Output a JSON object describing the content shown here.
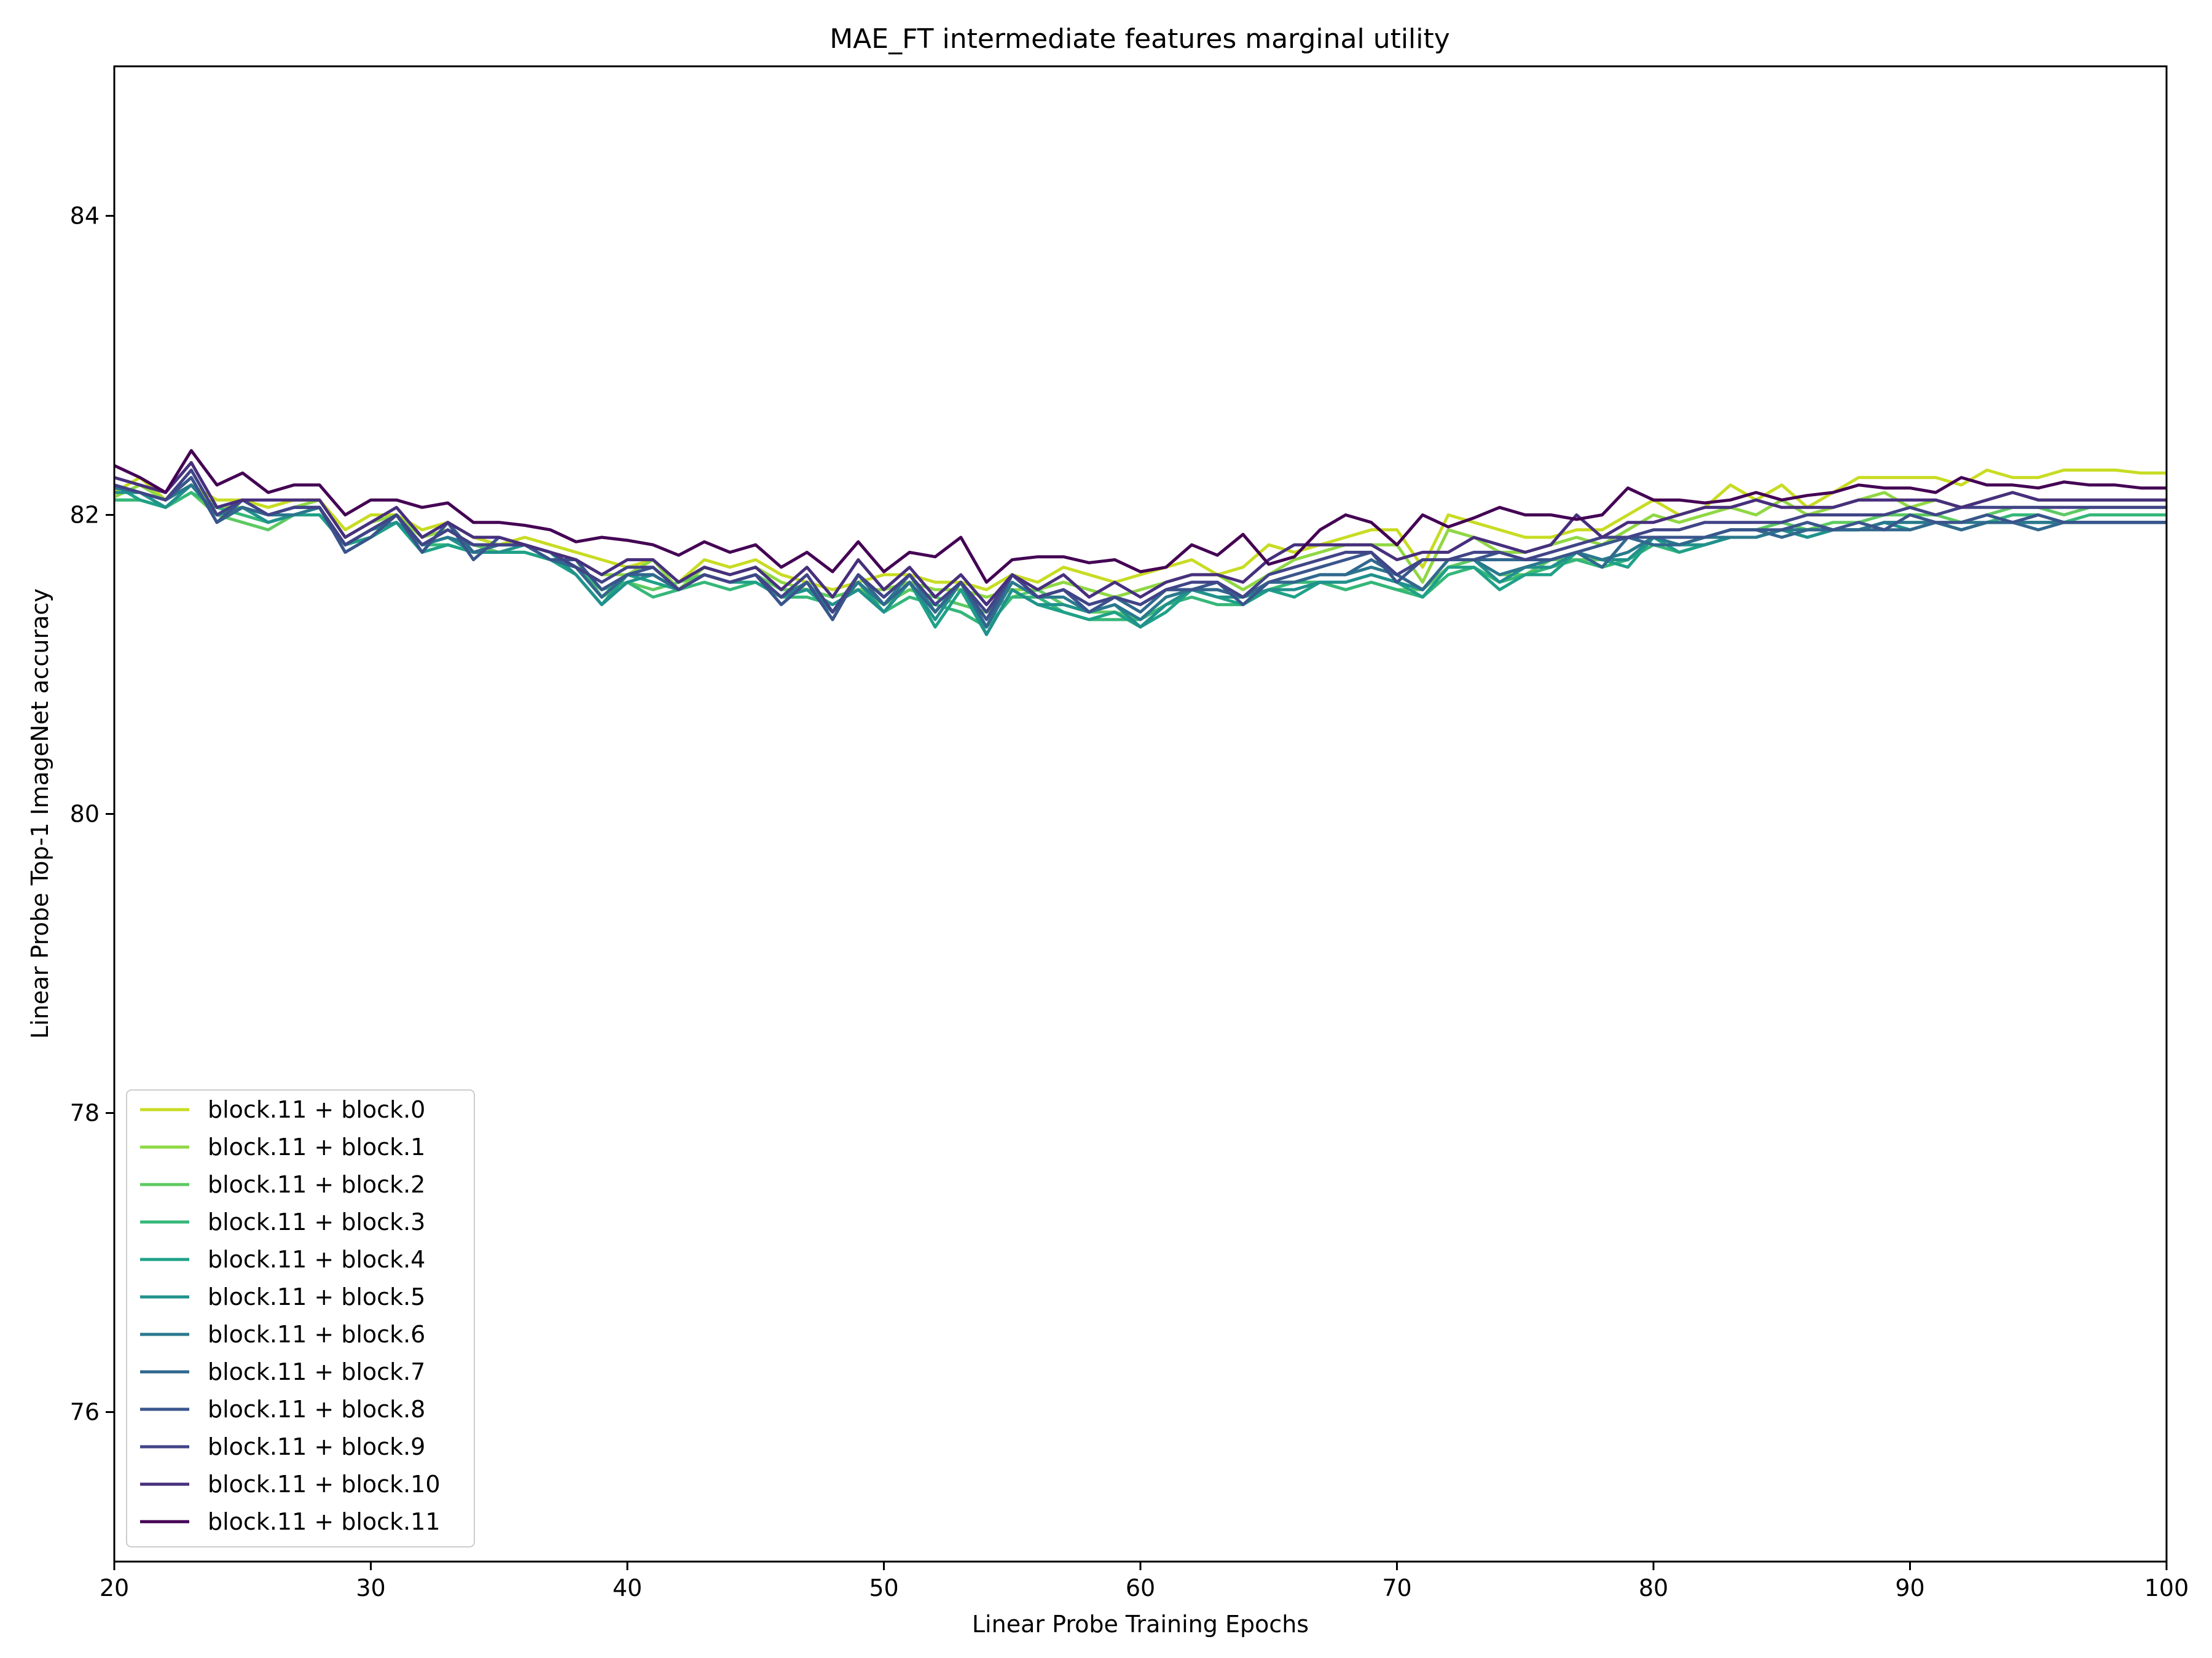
{
  "chart_data": {
    "type": "line",
    "title": "MAE_FT intermediate features marginal utility",
    "xlabel": "Linear Probe Training Epochs",
    "ylabel": "Linear Probe Top-1 ImageNet accuracy",
    "xlim": [
      20,
      100
    ],
    "ylim": [
      75,
      85
    ],
    "x_ticks": [
      20,
      30,
      40,
      50,
      60,
      70,
      80,
      90,
      100
    ],
    "x_tick_labels": [
      "20",
      "30",
      "40",
      "50",
      "60",
      "70",
      "80",
      "90",
      "100"
    ],
    "y_ticks": [
      76,
      78,
      80,
      82,
      84
    ],
    "y_tick_labels": [
      "76",
      "78",
      "80",
      "82",
      "84"
    ],
    "grid": false,
    "legend_position": "bottom-left",
    "x_start": 20,
    "x_step": 1,
    "series": [
      {
        "name": "block.11 + block.0",
        "color": "#c8dc23",
        "values": [
          82.15,
          82.25,
          82.1,
          82.2,
          82.1,
          82.1,
          82.05,
          82.1,
          82.1,
          81.9,
          82.0,
          82.0,
          81.9,
          81.95,
          81.85,
          81.8,
          81.85,
          81.8,
          81.75,
          81.7,
          81.65,
          81.7,
          81.55,
          81.7,
          81.65,
          81.7,
          81.6,
          81.55,
          81.5,
          81.55,
          81.6,
          81.6,
          81.55,
          81.55,
          81.5,
          81.6,
          81.55,
          81.65,
          81.6,
          81.55,
          81.6,
          81.65,
          81.7,
          81.6,
          81.65,
          81.8,
          81.75,
          81.8,
          81.85,
          81.9,
          81.9,
          81.65,
          82.0,
          81.95,
          81.9,
          81.85,
          81.85,
          81.9,
          81.9,
          82.0,
          82.1,
          82.0,
          82.05,
          82.2,
          82.1,
          82.2,
          82.05,
          82.15,
          82.25,
          82.25,
          82.25,
          82.25,
          82.2,
          82.3,
          82.25,
          82.25,
          82.3,
          82.3,
          82.3,
          82.28,
          82.28
        ]
      },
      {
        "name": "block.11 + block.1",
        "color": "#8fd744",
        "values": [
          82.12,
          82.2,
          82.1,
          82.2,
          82.05,
          82.05,
          82.0,
          82.05,
          82.1,
          81.85,
          81.95,
          82.0,
          81.85,
          81.9,
          81.8,
          81.8,
          81.8,
          81.75,
          81.7,
          81.6,
          81.6,
          81.7,
          81.5,
          81.65,
          81.6,
          81.65,
          81.55,
          81.5,
          81.45,
          81.5,
          81.5,
          81.55,
          81.5,
          81.5,
          81.45,
          81.5,
          81.5,
          81.55,
          81.5,
          81.45,
          81.5,
          81.55,
          81.6,
          81.6,
          81.5,
          81.6,
          81.7,
          81.75,
          81.8,
          81.8,
          81.8,
          81.55,
          81.9,
          81.85,
          81.75,
          81.75,
          81.8,
          81.85,
          81.8,
          81.9,
          82.0,
          81.95,
          82.0,
          82.05,
          82.0,
          82.1,
          82.0,
          82.05,
          82.1,
          82.15,
          82.05,
          82.1,
          82.05,
          82.1,
          82.15,
          82.1,
          82.1,
          82.1,
          82.1,
          82.1,
          82.1
        ]
      },
      {
        "name": "block.11 + block.2",
        "color": "#5ec962",
        "values": [
          82.1,
          82.1,
          82.05,
          82.15,
          82.0,
          81.95,
          81.9,
          82.0,
          82.05,
          81.8,
          81.9,
          81.95,
          81.8,
          81.85,
          81.8,
          81.75,
          81.75,
          81.7,
          81.7,
          81.45,
          81.55,
          81.5,
          81.55,
          81.6,
          81.55,
          81.6,
          81.5,
          81.5,
          81.45,
          81.5,
          81.4,
          81.5,
          81.45,
          81.4,
          81.35,
          81.45,
          81.5,
          81.4,
          81.35,
          81.35,
          81.3,
          81.45,
          81.5,
          81.45,
          81.45,
          81.5,
          81.55,
          81.55,
          81.5,
          81.55,
          81.5,
          81.5,
          81.65,
          81.7,
          81.6,
          81.6,
          81.7,
          81.7,
          81.7,
          81.75,
          81.85,
          81.8,
          81.85,
          81.9,
          81.9,
          81.95,
          81.9,
          81.95,
          81.95,
          82.0,
          82.0,
          82.0,
          81.95,
          82.0,
          82.05,
          82.05,
          82.0,
          82.05,
          82.05,
          82.05,
          82.05
        ]
      },
      {
        "name": "block.11 + block.3",
        "color": "#35b779",
        "values": [
          82.1,
          82.1,
          82.05,
          82.15,
          82.05,
          82.0,
          81.95,
          82.0,
          82.0,
          81.8,
          81.85,
          81.95,
          81.8,
          81.8,
          81.75,
          81.75,
          81.75,
          81.7,
          81.65,
          81.5,
          81.55,
          81.45,
          81.5,
          81.55,
          81.5,
          81.55,
          81.45,
          81.45,
          81.4,
          81.5,
          81.35,
          81.45,
          81.4,
          81.35,
          81.25,
          81.45,
          81.45,
          81.35,
          81.3,
          81.3,
          81.3,
          81.4,
          81.45,
          81.4,
          81.4,
          81.5,
          81.55,
          81.55,
          81.5,
          81.55,
          81.5,
          81.45,
          81.6,
          81.65,
          81.55,
          81.6,
          81.65,
          81.7,
          81.65,
          81.7,
          81.8,
          81.75,
          81.8,
          81.85,
          81.85,
          81.9,
          81.85,
          81.9,
          81.9,
          81.95,
          81.95,
          81.95,
          81.9,
          81.95,
          82.0,
          82.0,
          81.95,
          82.0,
          82.0,
          82.0,
          82.0
        ]
      },
      {
        "name": "block.11 + block.4",
        "color": "#1fa187",
        "values": [
          82.2,
          82.1,
          82.05,
          82.2,
          82.0,
          82.05,
          81.95,
          82.0,
          82.0,
          81.8,
          81.85,
          81.95,
          81.75,
          81.8,
          81.75,
          81.75,
          81.75,
          81.7,
          81.6,
          81.4,
          81.6,
          81.55,
          81.5,
          81.6,
          81.55,
          81.55,
          81.45,
          81.5,
          81.35,
          81.55,
          81.35,
          81.55,
          81.25,
          81.5,
          81.2,
          81.5,
          81.4,
          81.35,
          81.3,
          81.35,
          81.25,
          81.35,
          81.5,
          81.45,
          81.4,
          81.5,
          81.45,
          81.55,
          81.55,
          81.6,
          81.55,
          81.45,
          81.65,
          81.65,
          81.5,
          81.6,
          81.6,
          81.75,
          81.7,
          81.65,
          81.85,
          81.75,
          81.8,
          81.85,
          81.85,
          81.9,
          81.85,
          81.9,
          81.9,
          81.95,
          81.9,
          81.95,
          81.9,
          81.95,
          81.95,
          81.95,
          81.95,
          81.95,
          81.95,
          81.95,
          81.95
        ]
      },
      {
        "name": "block.11 + block.5",
        "color": "#21918c",
        "values": [
          82.15,
          82.15,
          82.05,
          82.2,
          82.0,
          82.05,
          81.95,
          82.0,
          82.05,
          81.8,
          81.9,
          81.95,
          81.8,
          81.85,
          81.75,
          81.75,
          81.8,
          81.75,
          81.6,
          81.4,
          81.55,
          81.6,
          81.5,
          81.6,
          81.55,
          81.6,
          81.45,
          81.5,
          81.4,
          81.5,
          81.35,
          81.55,
          81.3,
          81.55,
          81.2,
          81.5,
          81.4,
          81.4,
          81.35,
          81.4,
          81.25,
          81.4,
          81.5,
          81.45,
          81.45,
          81.5,
          81.5,
          81.55,
          81.55,
          81.6,
          81.55,
          81.5,
          81.7,
          81.7,
          81.55,
          81.65,
          81.65,
          81.75,
          81.7,
          81.7,
          81.85,
          81.8,
          81.8,
          81.85,
          81.85,
          81.9,
          81.85,
          81.9,
          81.9,
          81.95,
          81.9,
          81.95,
          81.9,
          81.95,
          81.95,
          81.95,
          81.95,
          81.95,
          81.95,
          81.95,
          81.95
        ]
      },
      {
        "name": "block.11 + block.6",
        "color": "#2a788e",
        "values": [
          82.18,
          82.15,
          82.1,
          82.2,
          82.0,
          82.05,
          82.0,
          82.0,
          82.05,
          81.8,
          81.9,
          82.0,
          81.8,
          81.85,
          81.8,
          81.8,
          81.8,
          81.75,
          81.65,
          81.45,
          81.6,
          81.6,
          81.5,
          81.6,
          81.55,
          81.6,
          81.45,
          81.55,
          81.35,
          81.55,
          81.4,
          81.6,
          81.35,
          81.55,
          81.25,
          81.55,
          81.45,
          81.45,
          81.35,
          81.4,
          81.3,
          81.45,
          81.5,
          81.5,
          81.45,
          81.55,
          81.55,
          81.6,
          81.6,
          81.65,
          81.6,
          81.5,
          81.7,
          81.7,
          81.6,
          81.65,
          81.7,
          81.75,
          81.7,
          81.75,
          81.85,
          81.8,
          81.85,
          81.85,
          81.85,
          81.9,
          81.9,
          81.9,
          81.9,
          81.95,
          81.95,
          81.95,
          81.95,
          81.95,
          81.95,
          81.95,
          81.95,
          81.95,
          81.95,
          81.95,
          81.95
        ]
      },
      {
        "name": "block.11 + block.7",
        "color": "#31688e",
        "values": [
          82.2,
          82.15,
          82.1,
          82.25,
          81.95,
          82.05,
          82.0,
          82.05,
          82.05,
          81.75,
          81.85,
          82.0,
          81.75,
          81.95,
          81.75,
          81.8,
          81.8,
          81.7,
          81.65,
          81.45,
          81.6,
          81.6,
          81.5,
          81.6,
          81.55,
          81.6,
          81.4,
          81.55,
          81.3,
          81.6,
          81.4,
          81.55,
          81.35,
          81.55,
          81.25,
          81.6,
          81.45,
          81.5,
          81.4,
          81.45,
          81.35,
          81.5,
          81.5,
          81.5,
          81.45,
          81.55,
          81.55,
          81.6,
          81.6,
          81.7,
          81.6,
          81.5,
          81.7,
          81.7,
          81.7,
          81.7,
          81.7,
          81.75,
          81.65,
          81.85,
          81.8,
          81.8,
          81.85,
          81.9,
          81.9,
          81.85,
          81.9,
          81.9,
          81.9,
          81.9,
          81.9,
          81.95,
          81.9,
          81.95,
          81.95,
          81.9,
          81.95,
          81.95,
          81.95,
          81.95,
          81.95
        ]
      },
      {
        "name": "block.11 + block.8",
        "color": "#39558c",
        "values": [
          82.2,
          82.15,
          82.1,
          82.25,
          81.95,
          82.1,
          82.0,
          82.05,
          82.05,
          81.75,
          81.85,
          82.0,
          81.75,
          81.95,
          81.7,
          81.85,
          81.8,
          81.7,
          81.7,
          81.5,
          81.6,
          81.65,
          81.5,
          81.6,
          81.55,
          81.6,
          81.4,
          81.55,
          81.3,
          81.6,
          81.45,
          81.6,
          81.4,
          81.55,
          81.3,
          81.6,
          81.45,
          81.5,
          81.35,
          81.45,
          81.4,
          81.5,
          81.5,
          81.55,
          81.4,
          81.55,
          81.6,
          81.65,
          81.7,
          81.75,
          81.55,
          81.7,
          81.7,
          81.7,
          81.75,
          81.7,
          81.7,
          81.75,
          81.8,
          81.85,
          81.85,
          81.85,
          81.85,
          81.9,
          81.9,
          81.9,
          81.95,
          81.9,
          81.95,
          81.9,
          82.0,
          81.95,
          81.95,
          82.0,
          81.95,
          82.0,
          81.95,
          81.95,
          81.95,
          81.95,
          81.95
        ]
      },
      {
        "name": "block.11 + block.9",
        "color": "#414487",
        "values": [
          82.2,
          82.15,
          82.1,
          82.3,
          82.0,
          82.1,
          82.0,
          82.05,
          82.05,
          81.8,
          81.9,
          82.0,
          81.8,
          81.9,
          81.8,
          81.8,
          81.8,
          81.75,
          81.65,
          81.55,
          81.65,
          81.65,
          81.5,
          81.6,
          81.55,
          81.6,
          81.45,
          81.6,
          81.35,
          81.6,
          81.45,
          81.6,
          81.4,
          81.55,
          81.35,
          81.6,
          81.45,
          81.5,
          81.4,
          81.45,
          81.4,
          81.5,
          81.55,
          81.55,
          81.45,
          81.6,
          81.65,
          81.7,
          81.75,
          81.75,
          81.6,
          81.7,
          81.7,
          81.75,
          81.75,
          81.7,
          81.75,
          81.8,
          81.85,
          81.85,
          81.9,
          81.9,
          81.95,
          81.95,
          81.95,
          81.95,
          82.0,
          82.0,
          82.0,
          82.0,
          82.05,
          82.0,
          82.05,
          82.05,
          82.05,
          82.05,
          82.05,
          82.05,
          82.05,
          82.05,
          82.05
        ]
      },
      {
        "name": "block.11 + block.10",
        "color": "#472f7d",
        "values": [
          82.25,
          82.2,
          82.15,
          82.35,
          82.05,
          82.1,
          82.1,
          82.1,
          82.1,
          81.85,
          81.95,
          82.05,
          81.85,
          81.95,
          81.85,
          81.85,
          81.8,
          81.75,
          81.7,
          81.6,
          81.7,
          81.7,
          81.55,
          81.65,
          81.6,
          81.65,
          81.5,
          81.65,
          81.45,
          81.7,
          81.5,
          81.65,
          81.45,
          81.6,
          81.4,
          81.6,
          81.5,
          81.6,
          81.45,
          81.55,
          81.45,
          81.55,
          81.6,
          81.6,
          81.55,
          81.7,
          81.8,
          81.8,
          81.8,
          81.8,
          81.7,
          81.75,
          81.75,
          81.85,
          81.8,
          81.75,
          81.8,
          82.0,
          81.85,
          81.95,
          81.95,
          82.0,
          82.05,
          82.05,
          82.1,
          82.05,
          82.05,
          82.05,
          82.1,
          82.1,
          82.1,
          82.1,
          82.05,
          82.1,
          82.15,
          82.1,
          82.1,
          82.1,
          82.1,
          82.1,
          82.1
        ]
      },
      {
        "name": "block.11 + block.11",
        "color": "#440154",
        "values": [
          82.33,
          82.25,
          82.15,
          82.43,
          82.2,
          82.28,
          82.15,
          82.2,
          82.2,
          82.0,
          82.1,
          82.1,
          82.05,
          82.08,
          81.95,
          81.95,
          81.93,
          81.9,
          81.82,
          81.85,
          81.83,
          81.8,
          81.73,
          81.82,
          81.75,
          81.8,
          81.65,
          81.75,
          81.62,
          81.82,
          81.62,
          81.75,
          81.72,
          81.85,
          81.55,
          81.7,
          81.72,
          81.72,
          81.68,
          81.7,
          81.62,
          81.65,
          81.8,
          81.73,
          81.87,
          81.67,
          81.72,
          81.9,
          82.0,
          81.95,
          81.8,
          82.0,
          81.92,
          81.98,
          82.05,
          82.0,
          82.0,
          81.97,
          82.0,
          82.18,
          82.1,
          82.1,
          82.08,
          82.1,
          82.15,
          82.1,
          82.13,
          82.15,
          82.2,
          82.18,
          82.18,
          82.15,
          82.25,
          82.2,
          82.2,
          82.18,
          82.22,
          82.2,
          82.2,
          82.18,
          82.18
        ]
      }
    ]
  }
}
